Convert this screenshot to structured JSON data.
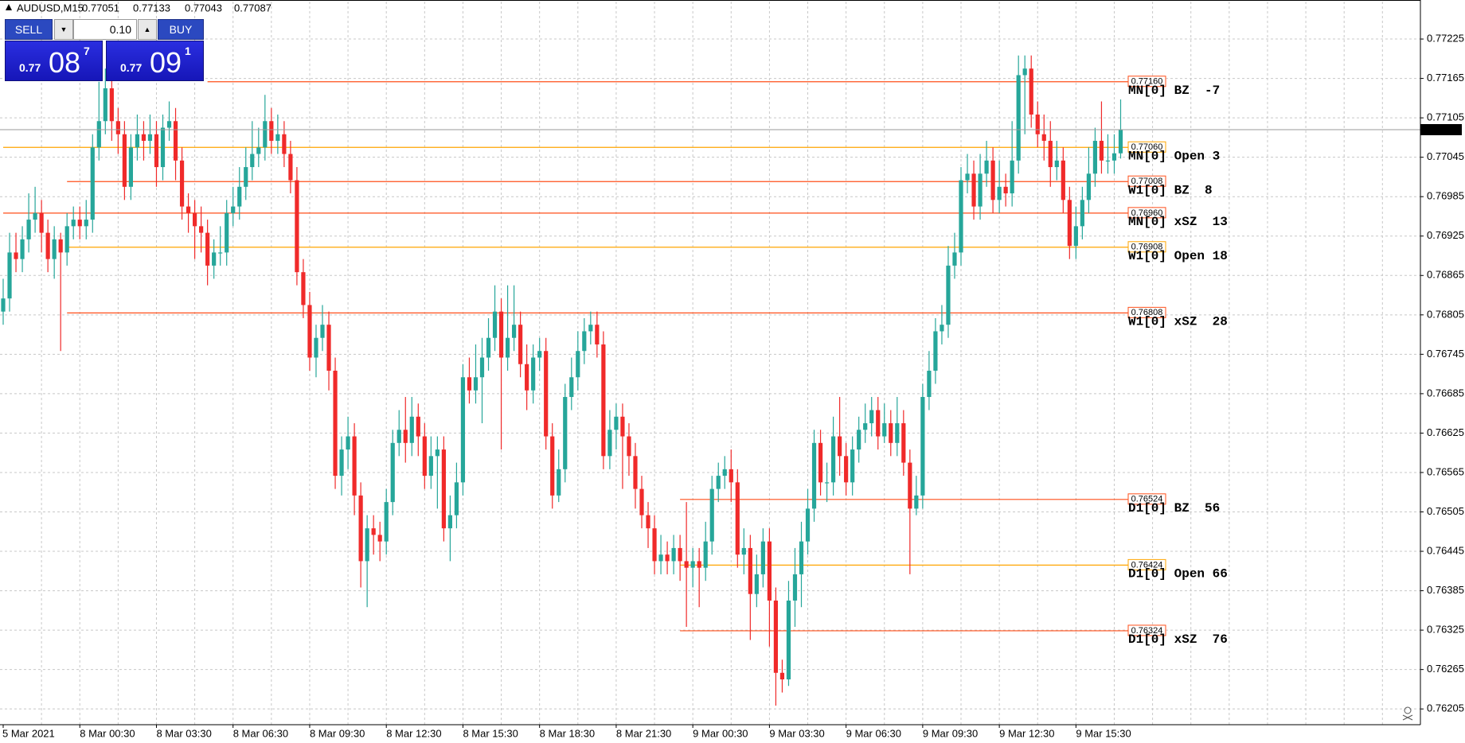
{
  "header": {
    "symbol": "AUDUSD,M15"
  },
  "trade_panel": {
    "sell": "SELL",
    "buy": "BUY",
    "volume": "0.10",
    "sell_price": {
      "prefix": "0.77",
      "pips": "08",
      "point": "7"
    },
    "buy_price": {
      "prefix": "0.77",
      "pips": "09",
      "point": "1"
    }
  },
  "chart_data": {
    "type": "candlestick",
    "up_color": "#26a69a",
    "down_color": "#f02a2a",
    "grid": true,
    "ylim": [
      0.76181,
      0.77282
    ],
    "yticks": [
      0.77225,
      0.77165,
      0.77105,
      0.77045,
      0.76985,
      0.76925,
      0.76865,
      0.76805,
      0.76745,
      0.76685,
      0.76625,
      0.76565,
      0.76505,
      0.76445,
      0.76385,
      0.76325,
      0.76265,
      0.76205
    ],
    "x_labels": [
      "5 Mar 2021",
      "8 Mar 00:30",
      "8 Mar 03:30",
      "8 Mar 06:30",
      "8 Mar 09:30",
      "8 Mar 12:30",
      "8 Mar 15:30",
      "8 Mar 18:30",
      "8 Mar 21:30",
      "9 Mar 00:30",
      "9 Mar 03:30",
      "9 Mar 06:30",
      "9 Mar 09:30",
      "9 Mar 12:30",
      "9 Mar 15:30"
    ],
    "open": [
      0.7681,
      0.7683,
      0.769,
      0.7689,
      0.7692,
      0.7695,
      0.7696,
      0.7693,
      0.7689,
      0.7692,
      0.769,
      0.7694,
      0.7695,
      0.7694,
      0.7695,
      0.7706,
      0.771,
      0.7715,
      0.771,
      0.7708,
      0.77,
      0.7706,
      0.7708,
      0.7707,
      0.7708,
      0.7703,
      0.7709,
      0.771,
      0.7704,
      0.7697,
      0.7696,
      0.7694,
      0.7693,
      0.7688,
      0.769,
      0.769,
      0.7696,
      0.7697,
      0.77,
      0.7703,
      0.7705,
      0.7706,
      0.771,
      0.7707,
      0.7708,
      0.7705,
      0.7701,
      0.7687,
      0.7682,
      0.7674,
      0.7677,
      0.7679,
      0.7672,
      0.7656,
      0.766,
      0.7662,
      0.7653,
      0.7643,
      0.7648,
      0.7647,
      0.7646,
      0.7652,
      0.7661,
      0.7663,
      0.7661,
      0.7665,
      0.7662,
      0.7656,
      0.7659,
      0.766,
      0.7648,
      0.765,
      0.7655,
      0.7671,
      0.7669,
      0.7671,
      0.7674,
      0.7677,
      0.7681,
      0.7674,
      0.7677,
      0.7679,
      0.7673,
      0.7669,
      0.7674,
      0.7675,
      0.7662,
      0.7653,
      0.7657,
      0.7668,
      0.7671,
      0.7675,
      0.7678,
      0.7679,
      0.7676,
      0.7659,
      0.7663,
      0.7665,
      0.7662,
      0.7659,
      0.7654,
      0.765,
      0.7648,
      0.7643,
      0.7644,
      0.7643,
      0.7645,
      0.7643,
      0.7642,
      0.7643,
      0.7642,
      0.7646,
      0.7654,
      0.7656,
      0.7657,
      0.7655,
      0.7644,
      0.7645,
      0.7638,
      0.7641,
      0.7646,
      0.7637,
      0.7626,
      0.7625,
      0.7637,
      0.7641,
      0.7646,
      0.7651,
      0.7661,
      0.7655,
      0.7655,
      0.7662,
      0.7659,
      0.7655,
      0.766,
      0.7663,
      0.7664,
      0.7666,
      0.7662,
      0.7664,
      0.7661,
      0.7664,
      0.7658,
      0.7651,
      0.7653,
      0.7668,
      0.7672,
      0.7678,
      0.7679,
      0.7688,
      0.769,
      0.7701,
      0.7702,
      0.7697,
      0.7702,
      0.7704,
      0.7698,
      0.77,
      0.7699,
      0.7704,
      0.7717,
      0.7718,
      0.7711,
      0.7708,
      0.7707,
      0.7703,
      0.7704,
      0.7698,
      0.7691,
      0.7694,
      0.7698,
      0.7702,
      0.7707,
      0.7704,
      0.7704,
      0.77051
    ],
    "high": [
      0.7686,
      0.7693,
      0.7693,
      0.7694,
      0.7699,
      0.77,
      0.7698,
      0.7695,
      0.7694,
      0.7693,
      0.7696,
      0.7697,
      0.7697,
      0.7698,
      0.7708,
      0.7716,
      0.7718,
      0.7717,
      0.7712,
      0.771,
      0.7708,
      0.7711,
      0.771,
      0.7711,
      0.771,
      0.7711,
      0.7713,
      0.7712,
      0.7706,
      0.7699,
      0.7698,
      0.7697,
      0.7695,
      0.7692,
      0.7694,
      0.7698,
      0.77,
      0.7703,
      0.7706,
      0.771,
      0.7709,
      0.7714,
      0.7712,
      0.7711,
      0.771,
      0.7707,
      0.7703,
      0.7689,
      0.7684,
      0.7679,
      0.7682,
      0.7681,
      0.7674,
      0.7662,
      0.7665,
      0.7664,
      0.7655,
      0.765,
      0.765,
      0.7649,
      0.7654,
      0.7663,
      0.7666,
      0.7668,
      0.7668,
      0.7667,
      0.7664,
      0.7662,
      0.7662,
      0.7662,
      0.7653,
      0.7658,
      0.7673,
      0.7674,
      0.7676,
      0.7677,
      0.768,
      0.7685,
      0.7683,
      0.7685,
      0.7685,
      0.7681,
      0.7676,
      0.7676,
      0.7677,
      0.7677,
      0.7664,
      0.766,
      0.767,
      0.7674,
      0.7678,
      0.768,
      0.7681,
      0.7681,
      0.7678,
      0.7666,
      0.7667,
      0.7667,
      0.7664,
      0.7661,
      0.7656,
      0.7652,
      0.765,
      0.7647,
      0.7646,
      0.7647,
      0.7647,
      0.7652,
      0.7645,
      0.7645,
      0.7649,
      0.7656,
      0.7658,
      0.7659,
      0.766,
      0.7657,
      0.7648,
      0.7647,
      0.7644,
      0.7648,
      0.7648,
      0.7639,
      0.7628,
      0.764,
      0.7645,
      0.7649,
      0.7654,
      0.7663,
      0.7663,
      0.7658,
      0.7665,
      0.7668,
      0.7661,
      0.7662,
      0.7665,
      0.7667,
      0.7668,
      0.7668,
      0.7667,
      0.7666,
      0.7668,
      0.7666,
      0.766,
      0.7656,
      0.767,
      0.7675,
      0.768,
      0.7682,
      0.7691,
      0.7693,
      0.7703,
      0.7705,
      0.7704,
      0.7705,
      0.7707,
      0.7706,
      0.7704,
      0.7702,
      0.771,
      0.772,
      0.772,
      0.772,
      0.7713,
      0.7711,
      0.771,
      0.7707,
      0.7706,
      0.77,
      0.7697,
      0.77,
      0.7706,
      0.7709,
      0.7713,
      0.7708,
      0.7708,
      0.77133
    ],
    "low": [
      0.7679,
      0.7681,
      0.7687,
      0.7687,
      0.769,
      0.7693,
      0.769,
      0.7687,
      0.7686,
      0.7675,
      0.7688,
      0.7692,
      0.7692,
      0.7692,
      0.7693,
      0.7704,
      0.7708,
      0.7707,
      0.7705,
      0.7698,
      0.7698,
      0.7704,
      0.7704,
      0.7705,
      0.77,
      0.7701,
      0.7707,
      0.7701,
      0.7695,
      0.7693,
      0.7689,
      0.769,
      0.7685,
      0.7686,
      0.7688,
      0.7688,
      0.7694,
      0.7695,
      0.7698,
      0.7701,
      0.7703,
      0.7704,
      0.7705,
      0.7705,
      0.7703,
      0.7699,
      0.7685,
      0.768,
      0.7672,
      0.7671,
      0.7675,
      0.7669,
      0.7654,
      0.7653,
      0.7657,
      0.765,
      0.7639,
      0.7636,
      0.7644,
      0.7643,
      0.7644,
      0.765,
      0.7659,
      0.7658,
      0.7659,
      0.7659,
      0.7654,
      0.7654,
      0.7651,
      0.7646,
      0.7643,
      0.7648,
      0.7653,
      0.7667,
      0.7667,
      0.7664,
      0.7672,
      0.7675,
      0.766,
      0.7672,
      0.7675,
      0.7671,
      0.7666,
      0.7667,
      0.7672,
      0.766,
      0.7651,
      0.7652,
      0.7655,
      0.7666,
      0.7669,
      0.7673,
      0.7676,
      0.7674,
      0.7657,
      0.7657,
      0.766,
      0.7654,
      0.7656,
      0.7651,
      0.7648,
      0.7645,
      0.7641,
      0.7641,
      0.7641,
      0.7641,
      0.764,
      0.7633,
      0.7639,
      0.7636,
      0.764,
      0.7644,
      0.7652,
      0.7654,
      0.7652,
      0.7642,
      0.7641,
      0.7631,
      0.7636,
      0.7639,
      0.763,
      0.7621,
      0.7623,
      0.7624,
      0.7633,
      0.7636,
      0.7644,
      0.7649,
      0.7653,
      0.7652,
      0.7653,
      0.7656,
      0.7653,
      0.7653,
      0.7658,
      0.7661,
      0.7662,
      0.766,
      0.7661,
      0.7659,
      0.7659,
      0.7656,
      0.7641,
      0.765,
      0.7651,
      0.7666,
      0.767,
      0.7676,
      0.7677,
      0.7686,
      0.7688,
      0.7699,
      0.7695,
      0.7695,
      0.77,
      0.7696,
      0.7696,
      0.7697,
      0.7697,
      0.7702,
      0.7708,
      0.7709,
      0.7706,
      0.7704,
      0.77,
      0.7701,
      0.7696,
      0.7689,
      0.7689,
      0.7692,
      0.7696,
      0.77,
      0.7702,
      0.7702,
      0.7702,
      0.77043
    ],
    "close": [
      0.7683,
      0.769,
      0.7689,
      0.7692,
      0.7695,
      0.7696,
      0.7693,
      0.7689,
      0.7692,
      0.769,
      0.7694,
      0.7695,
      0.7694,
      0.7695,
      0.7706,
      0.771,
      0.7715,
      0.771,
      0.7708,
      0.77,
      0.7706,
      0.7708,
      0.7707,
      0.7708,
      0.7703,
      0.7709,
      0.771,
      0.7704,
      0.7697,
      0.7696,
      0.7694,
      0.7693,
      0.7688,
      0.769,
      0.769,
      0.7696,
      0.7697,
      0.77,
      0.7703,
      0.7705,
      0.7706,
      0.771,
      0.7707,
      0.7708,
      0.7705,
      0.7701,
      0.7687,
      0.7682,
      0.7674,
      0.7677,
      0.7679,
      0.7672,
      0.7656,
      0.766,
      0.7662,
      0.7653,
      0.7643,
      0.7648,
      0.7647,
      0.7646,
      0.7652,
      0.7661,
      0.7663,
      0.7661,
      0.7665,
      0.7662,
      0.7656,
      0.7659,
      0.766,
      0.7648,
      0.765,
      0.7655,
      0.7671,
      0.7669,
      0.7671,
      0.7674,
      0.7677,
      0.7681,
      0.7674,
      0.7677,
      0.7679,
      0.7673,
      0.7669,
      0.7674,
      0.7675,
      0.7662,
      0.7653,
      0.7657,
      0.7668,
      0.7671,
      0.7675,
      0.7678,
      0.7679,
      0.7676,
      0.7659,
      0.7663,
      0.7665,
      0.7662,
      0.7659,
      0.7654,
      0.765,
      0.7648,
      0.7643,
      0.7644,
      0.7643,
      0.7645,
      0.7643,
      0.7642,
      0.7643,
      0.7642,
      0.7646,
      0.7654,
      0.7656,
      0.7657,
      0.7655,
      0.7644,
      0.7645,
      0.7638,
      0.7641,
      0.7646,
      0.7637,
      0.7626,
      0.7625,
      0.7637,
      0.7641,
      0.7646,
      0.7651,
      0.7661,
      0.7655,
      0.7655,
      0.7662,
      0.7659,
      0.7655,
      0.766,
      0.7663,
      0.7664,
      0.7666,
      0.7662,
      0.7664,
      0.7661,
      0.7664,
      0.7658,
      0.7651,
      0.7653,
      0.7668,
      0.7672,
      0.7678,
      0.7679,
      0.7688,
      0.769,
      0.7701,
      0.7702,
      0.7697,
      0.7702,
      0.7704,
      0.7698,
      0.77,
      0.7699,
      0.7704,
      0.7717,
      0.7718,
      0.7711,
      0.7708,
      0.7707,
      0.7703,
      0.7704,
      0.7698,
      0.7691,
      0.7694,
      0.7698,
      0.7702,
      0.7707,
      0.7704,
      0.7704,
      0.77051,
      0.77087
    ],
    "levels": [
      {
        "price": {
          "value": 0.7716,
          "label": "0.77160"
        },
        "text": "MN[0] BZ  -7",
        "color": "#ff4f1a",
        "from": 32
      },
      {
        "price": {
          "value": 0.7706,
          "label": "0.77060"
        },
        "text": "MN[0] Open 3",
        "color": "#ffa500",
        "from": 0
      },
      {
        "price": 0.77008,
        "text": "W1[0] BZ  8",
        "color": "#ff4f1a",
        "from": 10
      },
      {
        "price": {
          "value": 0.7696,
          "label": "0.76960"
        },
        "text": "MN[0] xSZ  13",
        "color": "#ff4f1a",
        "from": 0
      },
      {
        "price": 0.76908,
        "text": "W1[0] Open 18",
        "color": "#ffa500",
        "from": 10
      },
      {
        "price": 0.76808,
        "text": "W1[0] xSZ  28",
        "color": "#ff4f1a",
        "from": 10
      },
      {
        "price": 0.76524,
        "text": "D1[0] BZ  56",
        "color": "#ff4f1a",
        "from": 106
      },
      {
        "price": 0.76424,
        "text": "D1[0] Open 66",
        "color": "#ffa500",
        "from": 106
      },
      {
        "price": 0.76324,
        "text": "D1[0] xSZ  76",
        "color": "#ff4f1a",
        "from": 106
      }
    ]
  }
}
